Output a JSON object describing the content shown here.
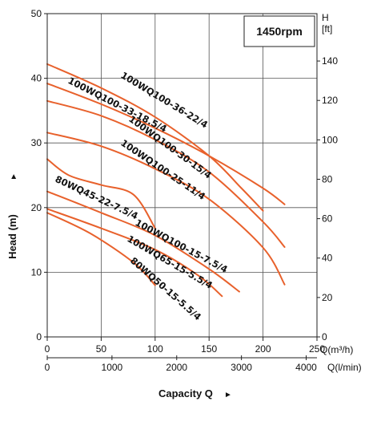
{
  "chart_data": {
    "type": "line",
    "rpm_label": "1450rpm",
    "x_axis_title": "Capacity Q",
    "x_axis_arrow": "►",
    "y_axis_title": "Head (m)",
    "y_axis_arrow": "►",
    "y_unit": "[m]",
    "y_right_unit_top": "H",
    "y_right_unit_bottom": "[ft]",
    "x_unit_m3h": "Q(m³/h)",
    "x_unit_lmin": "Q(l/min)",
    "grid": true,
    "x_range_m3h": [
      0,
      250
    ],
    "y_range_m": [
      0,
      50
    ],
    "x_ticks_m3h": [
      "0",
      "50",
      "100",
      "150",
      "200",
      "250"
    ],
    "x_ticks_lmin": [
      "0",
      "1000",
      "2000",
      "3000",
      "4000"
    ],
    "y_ticks_m": [
      "0",
      "10",
      "20",
      "30",
      "40",
      "50"
    ],
    "y_ticks_ft": [
      "0",
      "20",
      "40",
      "60",
      "80",
      "100",
      "120",
      "140"
    ],
    "curve_color": "#e8612c",
    "series": [
      {
        "name": "100WQ100-36-22/4",
        "x": [
          0,
          50,
          100,
          150,
          180,
          200
        ],
        "y": [
          42.2,
          38.5,
          34,
          28,
          23,
          19.5
        ]
      },
      {
        "name": "100WQ100-33-18.5/4",
        "x": [
          0,
          50,
          100,
          150,
          200,
          220
        ],
        "y": [
          39.2,
          36,
          32.3,
          28,
          23,
          20.5
        ]
      },
      {
        "name": "100WQ100-30-15/4",
        "x": [
          0,
          50,
          100,
          150,
          200,
          220
        ],
        "y": [
          36.5,
          34.2,
          30.5,
          25.5,
          17.8,
          13.9
        ]
      },
      {
        "name": "100WQ100-25-11/4",
        "x": [
          0,
          50,
          100,
          150,
          200,
          220
        ],
        "y": [
          31.6,
          29.5,
          26,
          21.3,
          13.8,
          8.1
        ]
      },
      {
        "name": "80WQ45-22-7.5/4",
        "x": [
          0,
          20,
          50,
          80,
          100
        ],
        "y": [
          27.5,
          25,
          23.5,
          22,
          16.8
        ]
      },
      {
        "name": "100WQ100-15-7.5/4",
        "x": [
          0,
          50,
          100,
          150,
          178
        ],
        "y": [
          22.5,
          19.2,
          15.7,
          10.5,
          7
        ]
      },
      {
        "name": "100WQ65-15-5.5/4",
        "x": [
          0,
          50,
          100,
          140,
          162
        ],
        "y": [
          19.8,
          16.8,
          13.5,
          9.5,
          6.3
        ]
      },
      {
        "name": "80WQ50-15-5.5/4",
        "x": [
          0,
          40,
          80,
          100
        ],
        "y": [
          19.2,
          16,
          11.5,
          8
        ]
      }
    ]
  }
}
